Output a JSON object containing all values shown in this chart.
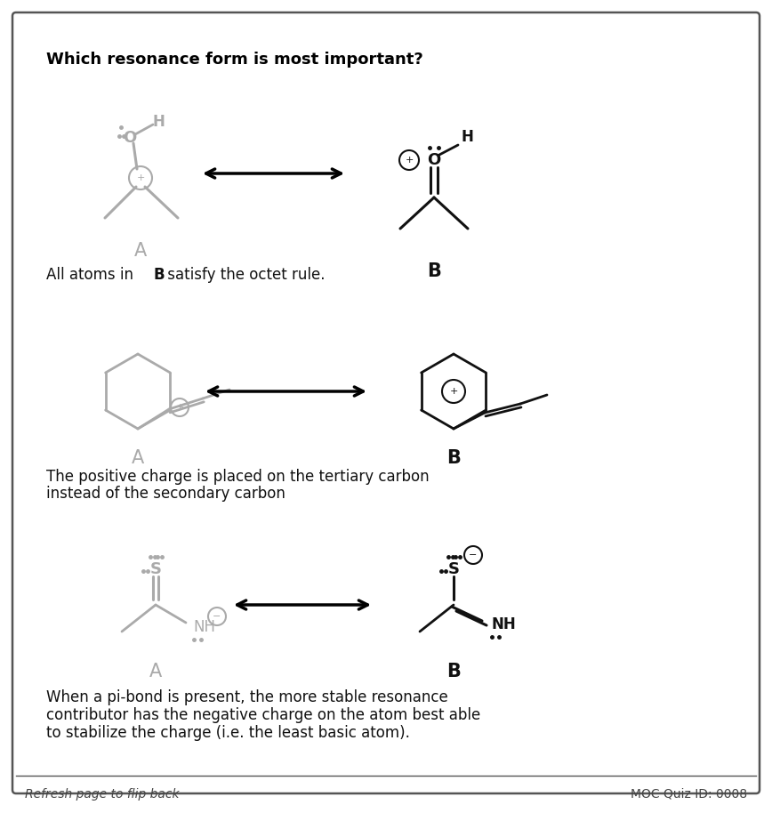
{
  "title": "Which resonance form is most important?",
  "gray_color": "#aaaaaa",
  "black_color": "#111111",
  "footer_left": "Refresh page to flip back",
  "footer_right": "MOC Quiz ID: 0008",
  "explanation1a": "All atoms in ",
  "explanation1b": "B",
  "explanation1c": " satisfy the octet rule.",
  "explanation2": "The positive charge is placed on the tertiary carbon\ninstead of the secondary carbon",
  "explanation3": "When a pi-bond is present, the more stable resonance\ncontributor has the negative charge on the atom best able\nto stabilize the charge (i.e. the least basic atom)."
}
